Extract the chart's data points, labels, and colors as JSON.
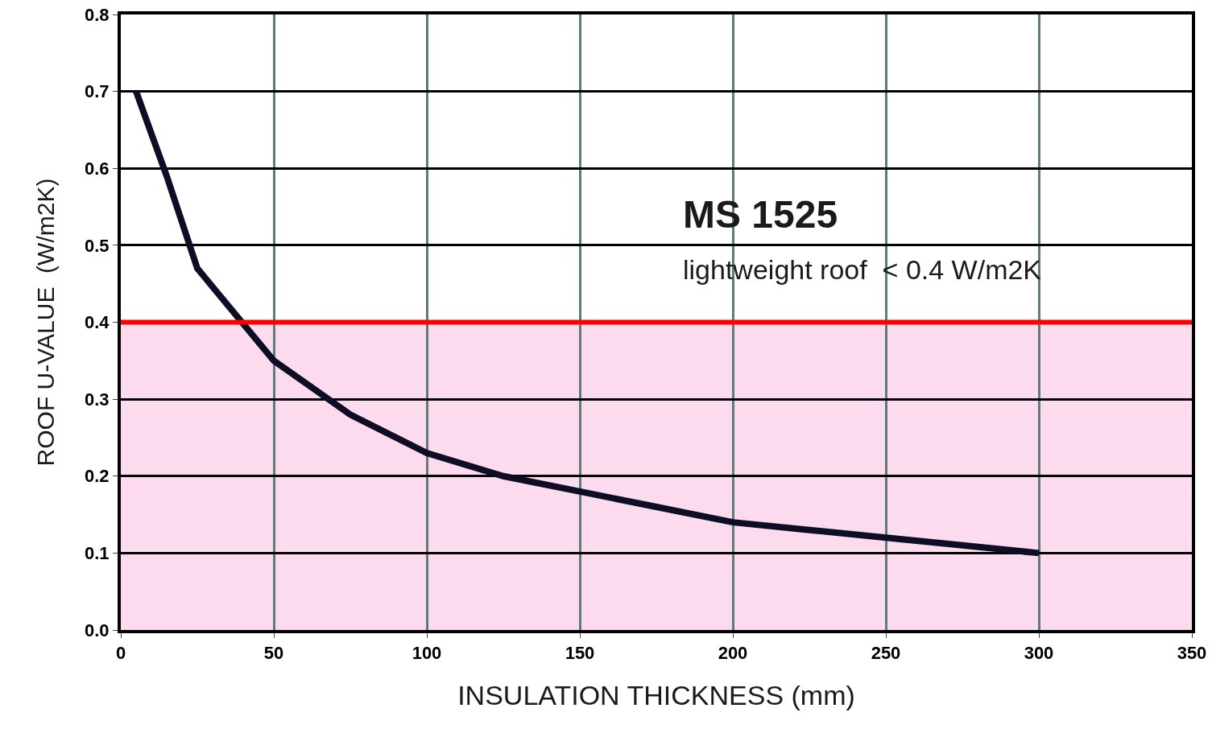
{
  "chart_data": {
    "type": "line",
    "xlabel": "INSULATION THICKNESS (mm)",
    "ylabel": "ROOF U-VALUE  (W/m2K)",
    "annotations": [
      "MS 1525",
      "lightweight roof  < 0.4 W/m2K"
    ],
    "series": [
      {
        "color": "#0d0d26",
        "x": [
          5,
          15,
          25,
          50,
          75,
          100,
          125,
          150,
          175,
          200,
          225,
          250,
          275,
          300
        ],
        "values": [
          0.7,
          0.59,
          0.47,
          0.35,
          0.28,
          0.23,
          0.2,
          0.18,
          0.16,
          0.14,
          0.13,
          0.12,
          0.11,
          0.1
        ]
      }
    ],
    "ref_lines": [
      {
        "axis": "y",
        "value": 0.4,
        "color": "#ff0000",
        "line_style": "solid"
      }
    ],
    "bands": [
      {
        "axis": "y",
        "from": 0,
        "to": 0.4,
        "color": "#fcd5ec"
      }
    ],
    "xlim": [
      0,
      350
    ],
    "xticks": [
      0,
      50,
      100,
      150,
      200,
      250,
      300,
      350
    ],
    "ylim": [
      0,
      0.8
    ],
    "yticks": [
      {
        "value": 0,
        "label": "0.0"
      },
      0.1,
      0.2,
      0.3,
      0.4,
      0.5,
      0.6,
      0.7,
      0.8
    ],
    "grid": true,
    "marker": "none",
    "line_style": "solid"
  }
}
